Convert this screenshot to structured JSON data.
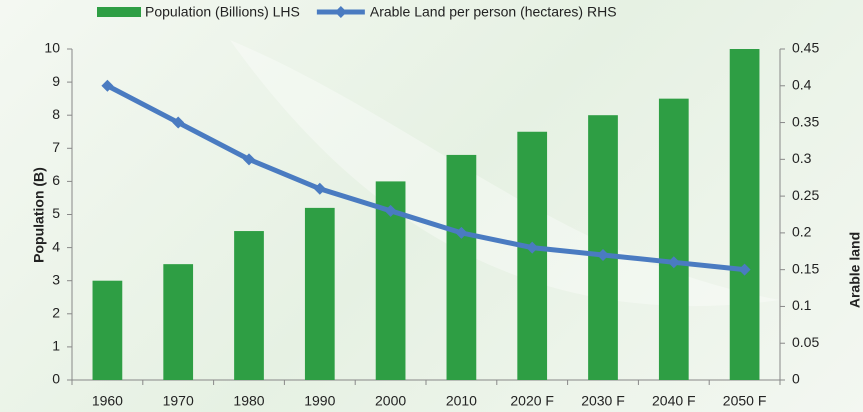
{
  "chart_data": {
    "type": "bar-line",
    "categories": [
      "1960",
      "1970",
      "1980",
      "1990",
      "2000",
      "2010",
      "2020 F",
      "2030 F",
      "2040 F",
      "2050 F"
    ],
    "series": [
      {
        "name": "Population (Billions) LHS",
        "color": "#2e9e44",
        "type": "bar",
        "values": [
          3.0,
          3.5,
          4.5,
          5.2,
          6.0,
          6.8,
          7.5,
          8.0,
          8.5,
          10.0
        ]
      },
      {
        "name": "Arable Land per person (hectares) RHS",
        "color": "#4a7bc1",
        "type": "line",
        "axis": "y2",
        "values": [
          0.4,
          0.35,
          0.3,
          0.26,
          0.23,
          0.2,
          0.18,
          0.17,
          0.16,
          0.15
        ]
      }
    ],
    "ylabel": "Population (B)",
    "y2label": "Arable land",
    "ylim": [
      0,
      10
    ],
    "yticks": [
      0,
      1,
      2,
      3,
      4,
      5,
      6,
      7,
      8,
      9,
      10
    ],
    "y2lim": [
      0,
      0.45
    ],
    "y2ticks": [
      0,
      0.05,
      0.1,
      0.15,
      0.2,
      0.25,
      0.3,
      0.35,
      0.4,
      0.45
    ],
    "legend": "top"
  }
}
